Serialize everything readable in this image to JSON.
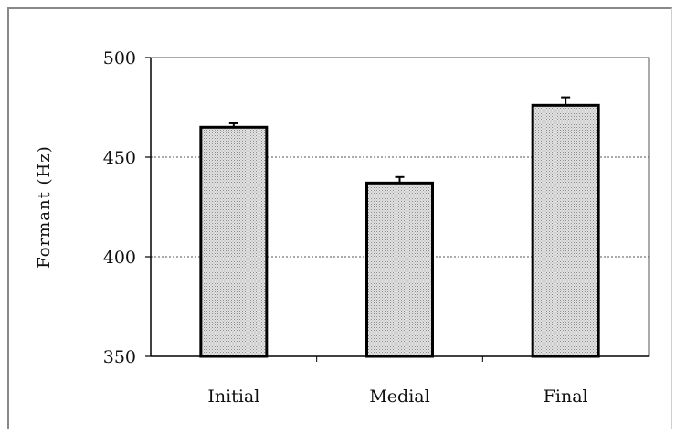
{
  "chart_data": {
    "type": "bar",
    "categories": [
      "Initial",
      "Medial",
      "Final"
    ],
    "values": [
      465,
      437,
      476
    ],
    "error": [
      2,
      3,
      4
    ],
    "ylabel": "Formant (Hz)",
    "xlabel": "",
    "ylim": [
      350,
      500
    ],
    "yticks": [
      350,
      400,
      450,
      500
    ],
    "grid": "horizontal dotted",
    "bar_fill": "#d8d8d8",
    "bar_edge": "#000000"
  }
}
